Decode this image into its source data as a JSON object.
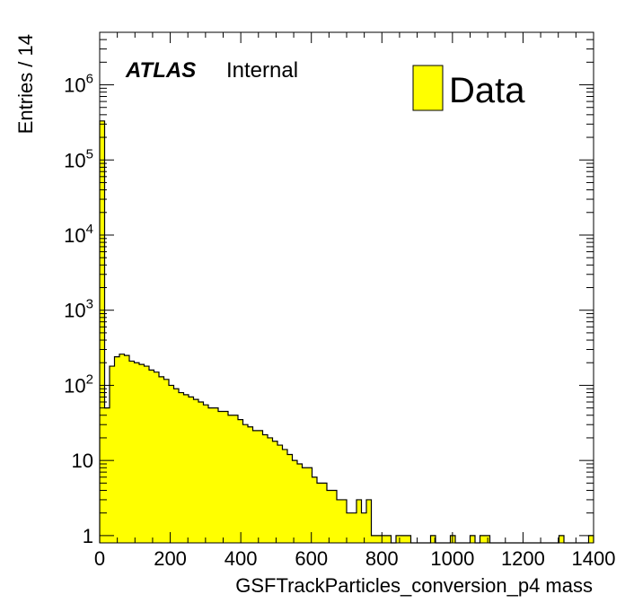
{
  "chart_data": {
    "type": "bar",
    "histogram": true,
    "xlabel": "GSFTrackParticles_conversion_p4 mass",
    "ylabel": "Entries / 14",
    "xlim": [
      0,
      1400
    ],
    "ylim": [
      0.8,
      5000000
    ],
    "yscale": "log",
    "bin_width": 14,
    "x_ticks": [
      "0",
      "200",
      "400",
      "600",
      "800",
      "1000",
      "1200",
      "1400"
    ],
    "y_ticks": [
      {
        "value": 1,
        "base": "1",
        "exp": ""
      },
      {
        "value": 10,
        "base": "10",
        "exp": ""
      },
      {
        "value": 100,
        "base": "10",
        "exp": "2"
      },
      {
        "value": 1000,
        "base": "10",
        "exp": "3"
      },
      {
        "value": 10000,
        "base": "10",
        "exp": "4"
      },
      {
        "value": 100000,
        "base": "10",
        "exp": "5"
      },
      {
        "value": 1000000,
        "base": "10",
        "exp": "6"
      }
    ],
    "experiment_label": "ATLAS",
    "status_label": "Internal",
    "legend": {
      "entry": "Data",
      "color": "#ffff00",
      "placement": "top-right"
    },
    "fill_color": "#ffff00",
    "line_color": "#000000",
    "series": [
      {
        "values": [
          330000,
          50,
          180,
          240,
          260,
          250,
          210,
          200,
          190,
          180,
          160,
          150,
          130,
          120,
          100,
          90,
          80,
          75,
          70,
          65,
          60,
          55,
          50,
          50,
          45,
          45,
          40,
          40,
          35,
          30,
          28,
          25,
          25,
          22,
          20,
          18,
          16,
          14,
          12,
          10,
          9,
          8,
          8,
          6,
          5,
          5,
          4,
          4,
          3,
          3,
          2,
          2,
          3,
          2,
          3,
          1,
          1,
          1,
          1,
          0,
          1,
          1,
          1,
          0,
          0,
          0,
          0,
          1,
          0,
          0,
          0,
          1,
          0,
          0,
          0,
          1,
          0,
          1,
          1,
          0,
          0,
          0,
          0,
          0,
          0,
          0,
          0,
          0,
          0,
          0,
          0,
          0,
          0,
          1,
          0,
          0,
          0,
          0,
          0,
          1
        ]
      }
    ]
  }
}
